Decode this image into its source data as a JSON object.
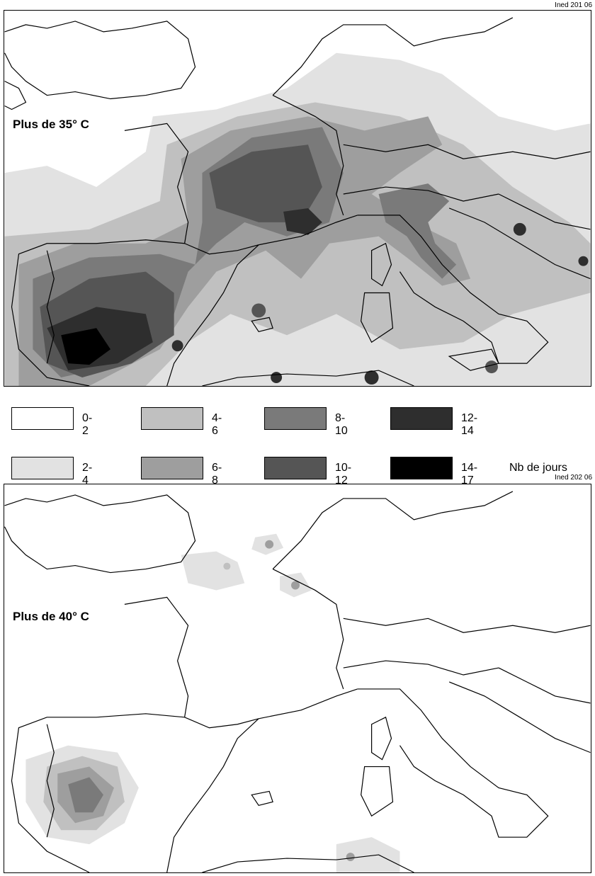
{
  "figure1": {
    "ref": "Ined 201 06",
    "title": "Plus de 35° C"
  },
  "figure2": {
    "ref": "Ined 202 06",
    "title": "Plus de 40° C"
  },
  "legend": {
    "unit": "Nb de jours",
    "classes": [
      {
        "label": "0-2",
        "color": "#ffffff"
      },
      {
        "label": "2-4",
        "color": "#e2e2e2"
      },
      {
        "label": "4-6",
        "color": "#c0c0c0"
      },
      {
        "label": "6-8",
        "color": "#9e9e9e"
      },
      {
        "label": "8-10",
        "color": "#7a7a7a"
      },
      {
        "label": "10-12",
        "color": "#555555"
      },
      {
        "label": "12-14",
        "color": "#2e2e2e"
      },
      {
        "label": "14-17",
        "color": "#000000"
      }
    ]
  }
}
